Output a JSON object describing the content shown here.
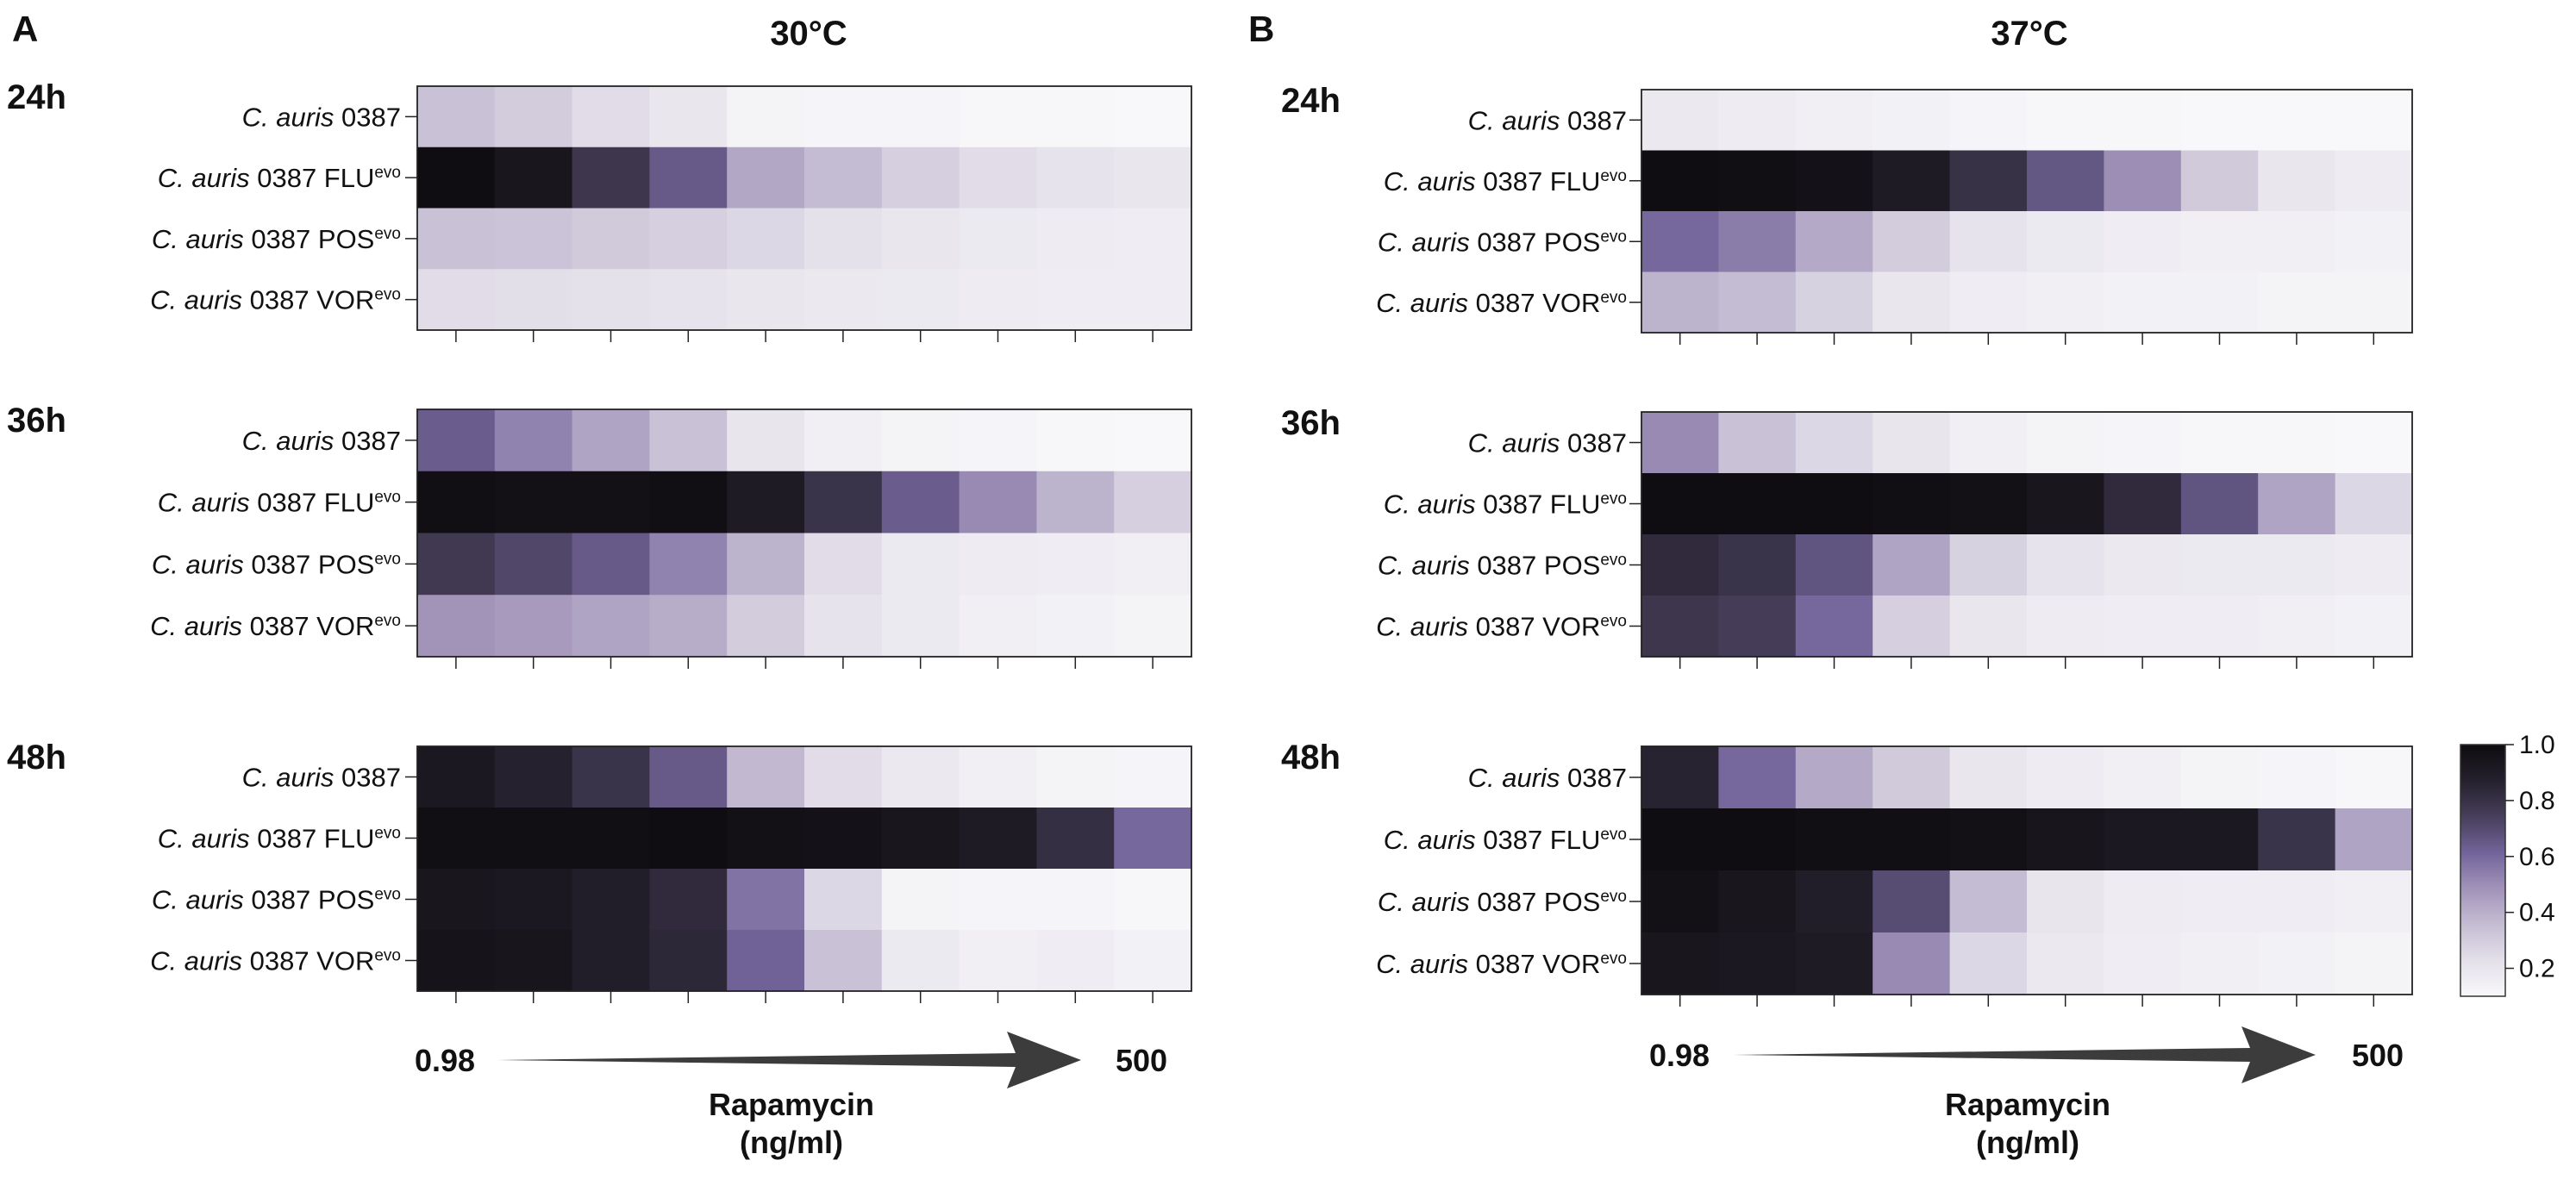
{
  "chart_data": {
    "type": "heatmap",
    "colormap": [
      "#f8f8fa",
      "#e4e0ea",
      "#c4bcd2",
      "#a092b8",
      "#72649a",
      "#48405c",
      "#24202c",
      "#0e0c10"
    ],
    "colorbar": {
      "ticks": [
        "1.0",
        "0.8",
        "0.6",
        "0.4",
        "0.2"
      ],
      "range": [
        0.1,
        1.0
      ]
    },
    "row_species": "C. auris",
    "row_strain": "0387",
    "row_tags": [
      "",
      "FLU",
      "POS",
      "VOR"
    ],
    "row_sup": "evo",
    "x_axis": {
      "low": "0.98",
      "high": "500",
      "title_line1": "Rapamycin",
      "title_line2": "(ng/ml)"
    },
    "panels": [
      {
        "letter": "A",
        "temperature": "30°C",
        "timepoints": [
          {
            "label": "24h",
            "values": [
              [
                0.3,
                0.26,
                0.2,
                0.15,
                0.08,
                0.07,
                0.07,
                0.06,
                0.06,
                0.05
              ],
              [
                0.99,
                0.93,
                0.77,
                0.63,
                0.39,
                0.32,
                0.25,
                0.2,
                0.17,
                0.15
              ],
              [
                0.3,
                0.29,
                0.27,
                0.25,
                0.22,
                0.18,
                0.15,
                0.13,
                0.12,
                0.11
              ],
              [
                0.2,
                0.19,
                0.18,
                0.17,
                0.15,
                0.14,
                0.13,
                0.12,
                0.11,
                0.11
              ]
            ]
          },
          {
            "label": "36h",
            "values": [
              [
                0.62,
                0.5,
                0.4,
                0.3,
                0.16,
                0.1,
                0.08,
                0.07,
                0.06,
                0.05
              ],
              [
                0.98,
                0.97,
                0.97,
                0.98,
                0.9,
                0.78,
                0.62,
                0.48,
                0.35,
                0.25
              ],
              [
                0.76,
                0.7,
                0.63,
                0.5,
                0.35,
                0.2,
                0.13,
                0.12,
                0.11,
                0.1
              ],
              [
                0.45,
                0.43,
                0.4,
                0.37,
                0.26,
                0.17,
                0.13,
                0.1,
                0.09,
                0.08
              ]
            ]
          },
          {
            "label": "48h",
            "values": [
              [
                0.92,
                0.86,
                0.78,
                0.63,
                0.33,
                0.2,
                0.14,
                0.1,
                0.08,
                0.07
              ],
              [
                0.98,
                0.98,
                0.98,
                0.99,
                0.97,
                0.96,
                0.93,
                0.9,
                0.8,
                0.58
              ],
              [
                0.93,
                0.92,
                0.88,
                0.82,
                0.55,
                0.22,
                0.08,
                0.07,
                0.07,
                0.06
              ],
              [
                0.95,
                0.94,
                0.88,
                0.83,
                0.6,
                0.3,
                0.13,
                0.1,
                0.11,
                0.09
              ]
            ]
          }
        ]
      },
      {
        "letter": "B",
        "temperature": "37°C",
        "timepoints": [
          {
            "label": "24h",
            "values": [
              [
                0.14,
                0.12,
                0.1,
                0.09,
                0.07,
                0.06,
                0.06,
                0.05,
                0.05,
                0.04
              ],
              [
                0.99,
                0.98,
                0.96,
                0.9,
                0.79,
                0.64,
                0.47,
                0.27,
                0.15,
                0.12
              ],
              [
                0.58,
                0.52,
                0.38,
                0.26,
                0.17,
                0.13,
                0.11,
                0.1,
                0.1,
                0.09
              ],
              [
                0.35,
                0.32,
                0.24,
                0.15,
                0.11,
                0.1,
                0.09,
                0.09,
                0.08,
                0.08
              ]
            ]
          },
          {
            "label": "36h",
            "values": [
              [
                0.48,
                0.3,
                0.22,
                0.16,
                0.1,
                0.08,
                0.07,
                0.06,
                0.06,
                0.05
              ],
              [
                0.99,
                0.99,
                0.99,
                0.98,
                0.97,
                0.93,
                0.82,
                0.65,
                0.4,
                0.22
              ],
              [
                0.82,
                0.78,
                0.65,
                0.4,
                0.24,
                0.17,
                0.14,
                0.13,
                0.13,
                0.12
              ],
              [
                0.77,
                0.74,
                0.58,
                0.25,
                0.15,
                0.12,
                0.11,
                0.11,
                0.1,
                0.09
              ]
            ]
          },
          {
            "label": "48h",
            "values": [
              [
                0.85,
                0.58,
                0.38,
                0.27,
                0.15,
                0.12,
                0.1,
                0.08,
                0.07,
                0.06
              ],
              [
                0.99,
                0.99,
                0.98,
                0.98,
                0.97,
                0.94,
                0.92,
                0.92,
                0.78,
                0.4
              ],
              [
                0.97,
                0.93,
                0.88,
                0.68,
                0.32,
                0.16,
                0.12,
                0.11,
                0.11,
                0.1
              ],
              [
                0.93,
                0.92,
                0.9,
                0.48,
                0.22,
                0.14,
                0.11,
                0.1,
                0.09,
                0.08
              ]
            ]
          }
        ]
      }
    ]
  }
}
